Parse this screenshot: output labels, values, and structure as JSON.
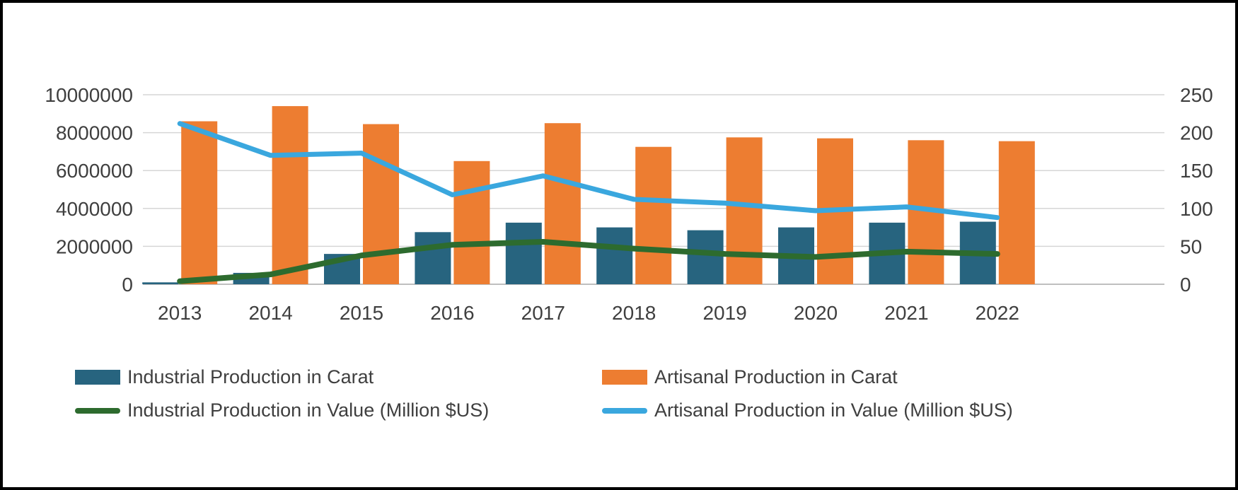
{
  "chart_data": {
    "type": "bar",
    "subtype": "combo-bar-line-dual-axis",
    "title": "",
    "categories": [
      "2013",
      "2014",
      "2015",
      "2016",
      "2017",
      "2018",
      "2019",
      "2020",
      "2021",
      "2022"
    ],
    "series": [
      {
        "name": "Industrial Production in Carat",
        "type": "bar",
        "axis": "left",
        "color": "#27647F",
        "values": [
          100000,
          600000,
          1600000,
          2750000,
          3250000,
          3000000,
          2850000,
          3000000,
          3250000,
          3300000
        ]
      },
      {
        "name": "Artisanal Production in Carat",
        "type": "bar",
        "axis": "left",
        "color": "#ED7D31",
        "values": [
          8600000,
          9400000,
          8450000,
          6500000,
          8500000,
          7250000,
          7750000,
          7700000,
          7600000,
          7550000
        ]
      },
      {
        "name": "Industrial Production in Value (Million $US)",
        "type": "line",
        "axis": "right",
        "color": "#2D6B2E",
        "values": [
          4,
          13,
          38,
          52,
          56,
          47,
          40,
          36,
          43,
          40
        ]
      },
      {
        "name": "Artisanal Production in Value (Million $US)",
        "type": "line",
        "axis": "right",
        "color": "#3AA7DE",
        "values": [
          212,
          170,
          173,
          118,
          143,
          112,
          107,
          97,
          102,
          88
        ]
      }
    ],
    "left_axis": {
      "min": 0,
      "max": 10000000,
      "step": 2000000,
      "tick_labels": [
        "0",
        "2000000",
        "4000000",
        "6000000",
        "8000000",
        "10000000"
      ]
    },
    "right_axis": {
      "min": 0,
      "max": 250,
      "step": 50,
      "tick_labels": [
        "0",
        "50",
        "100",
        "150",
        "200",
        "250"
      ]
    },
    "grid": true,
    "gridline_color": "#D6D6D6",
    "legend_position": "bottom"
  }
}
